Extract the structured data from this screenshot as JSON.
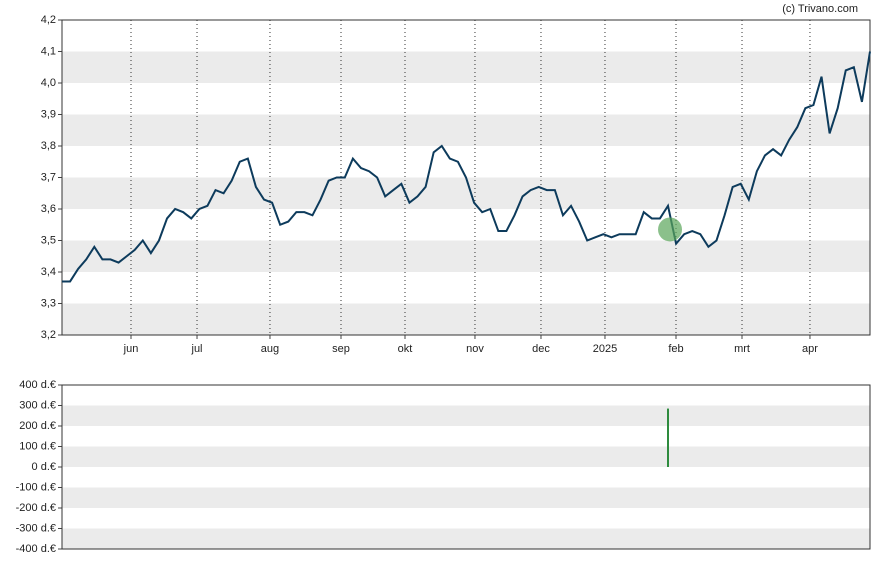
{
  "credit": "(c) Trivano.com",
  "chart_data": [
    {
      "type": "line",
      "color": "#0d3b5c",
      "bands": "#ebebeb",
      "values": [
        3.37,
        3.37,
        3.41,
        3.44,
        3.48,
        3.44,
        3.44,
        3.43,
        3.45,
        3.47,
        3.5,
        3.46,
        3.5,
        3.57,
        3.6,
        3.59,
        3.57,
        3.6,
        3.61,
        3.66,
        3.65,
        3.69,
        3.75,
        3.76,
        3.67,
        3.63,
        3.62,
        3.55,
        3.56,
        3.59,
        3.59,
        3.58,
        3.63,
        3.69,
        3.7,
        3.7,
        3.76,
        3.73,
        3.72,
        3.7,
        3.64,
        3.66,
        3.68,
        3.62,
        3.64,
        3.67,
        3.78,
        3.8,
        3.76,
        3.75,
        3.7,
        3.62,
        3.59,
        3.6,
        3.53,
        3.53,
        3.58,
        3.64,
        3.66,
        3.67,
        3.66,
        3.66,
        3.58,
        3.61,
        3.56,
        3.5,
        3.51,
        3.52,
        3.51,
        3.52,
        3.52,
        3.52,
        3.59,
        3.57,
        3.57,
        3.61,
        3.49,
        3.52,
        3.53,
        3.52,
        3.48,
        3.5,
        3.58,
        3.67,
        3.68,
        3.63,
        3.72,
        3.77,
        3.79,
        3.77,
        3.82,
        3.86,
        3.92,
        3.93,
        4.02,
        3.84,
        3.92,
        4.04,
        4.05,
        3.94,
        4.1
      ],
      "xlim": [
        0,
        100
      ],
      "xticks": [
        {
          "value": 8.54,
          "label": "jun"
        },
        {
          "value": 16.71,
          "label": "jul"
        },
        {
          "value": 25.74,
          "label": "aug"
        },
        {
          "value": 34.53,
          "label": "sep"
        },
        {
          "value": 42.45,
          "label": "okt"
        },
        {
          "value": 51.11,
          "label": "nov"
        },
        {
          "value": 59.28,
          "label": "dec"
        },
        {
          "value": 67.2,
          "label": "2025"
        },
        {
          "value": 75.99,
          "label": "feb"
        },
        {
          "value": 84.16,
          "label": "mrt"
        },
        {
          "value": 92.57,
          "label": "apr"
        }
      ],
      "ylim": [
        3.2,
        4.2
      ],
      "yticks": [
        {
          "value": 3.2,
          "label": "3,2"
        },
        {
          "value": 3.3,
          "label": "3,3"
        },
        {
          "value": 3.4,
          "label": "3,4"
        },
        {
          "value": 3.5,
          "label": "3,5"
        },
        {
          "value": 3.6,
          "label": "3,6"
        },
        {
          "value": 3.7,
          "label": "3,7"
        },
        {
          "value": 3.8,
          "label": "3,8"
        },
        {
          "value": 3.9,
          "label": "3,9"
        },
        {
          "value": 4.0,
          "label": "4,0"
        },
        {
          "value": 4.1,
          "label": "4,1"
        },
        {
          "value": 4.2,
          "label": "4,2"
        }
      ],
      "markers": [
        {
          "x": 75.25,
          "y": 3.535,
          "color": "#5aa55a"
        }
      ]
    },
    {
      "type": "bar",
      "color": "#2e8b3e",
      "bands": "#ebebeb",
      "x": [
        75.0
      ],
      "values": [
        285
      ],
      "xlim": [
        0,
        100
      ],
      "ylim": [
        -400,
        400
      ],
      "yticks": [
        {
          "value": -400,
          "label": "-400 d.€"
        },
        {
          "value": -300,
          "label": "-300 d.€"
        },
        {
          "value": -200,
          "label": "-200 d.€"
        },
        {
          "value": -100,
          "label": "-100 d.€"
        },
        {
          "value": 0,
          "label": "0 d.€"
        },
        {
          "value": 100,
          "label": "100 d.€"
        },
        {
          "value": 200,
          "label": "200 d.€"
        },
        {
          "value": 300,
          "label": "300 d.€"
        },
        {
          "value": 400,
          "label": "400 d.€"
        }
      ]
    }
  ]
}
